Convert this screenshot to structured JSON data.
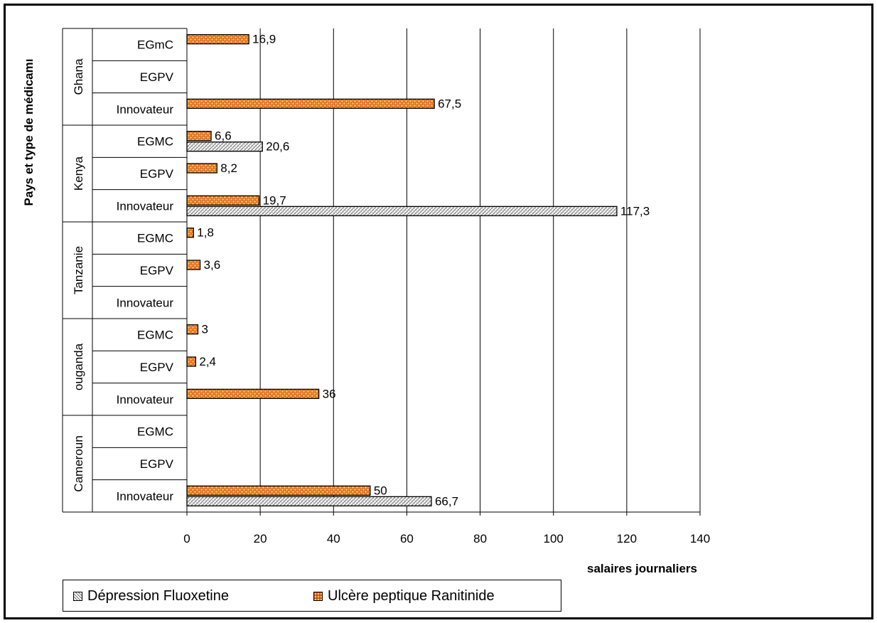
{
  "chart_data": {
    "type": "bar",
    "orientation": "horizontal",
    "title": "",
    "ylabel": "Pays et type de médicamı",
    "xlabel": "salaires journaliers",
    "xlim": [
      0,
      140
    ],
    "x_ticks": [
      "0",
      "20",
      "40",
      "60",
      "80",
      "100",
      "120",
      "140"
    ],
    "x_tick_values": [
      0,
      20,
      40,
      60,
      80,
      100,
      120,
      140
    ],
    "grid": "vertical",
    "legend_position": "bottom",
    "groups": [
      {
        "country": "Ghana",
        "categories": [
          "EGmC",
          "EGPV",
          "Innovateur"
        ]
      },
      {
        "country": "Kenya",
        "categories": [
          "EGMC",
          "EGPV",
          "Innovateur"
        ]
      },
      {
        "country": "Tanzanie",
        "categories": [
          "EGMC",
          "EGPV",
          "Innovateur"
        ]
      },
      {
        "country": "ouganda",
        "categories": [
          "EGMC",
          "EGPV",
          "Innovateur"
        ]
      },
      {
        "country": "Cameroun",
        "categories": [
          "EGMC",
          "EGPV",
          "Innovateur"
        ]
      }
    ],
    "series": [
      {
        "name": "Ulcère peptique Ranitinide",
        "color": "#f0a030",
        "pattern": "orange-dotted",
        "values": [
          16.9,
          null,
          67.5,
          6.6,
          8.2,
          19.7,
          1.8,
          3.6,
          null,
          3,
          2.4,
          36,
          null,
          null,
          50
        ],
        "labels": [
          "16,9",
          "",
          "67,5",
          "6,6",
          "8,2",
          "19,7",
          "1,8",
          "3,6",
          "",
          "3",
          "2,4",
          "36",
          "",
          "",
          "50"
        ]
      },
      {
        "name": "Dépression Fluoxetine",
        "color": "#c8c8c8",
        "pattern": "gray-hatched",
        "values": [
          null,
          null,
          null,
          20.6,
          null,
          117.3,
          null,
          null,
          null,
          null,
          null,
          null,
          null,
          null,
          66.7
        ],
        "labels": [
          "",
          "",
          "",
          "20,6",
          "",
          "117,3",
          "",
          "",
          "",
          "",
          "",
          "",
          "",
          "",
          "66,7"
        ]
      }
    ],
    "legend": [
      {
        "name": "Dépression Fluoxetine",
        "pattern": "gray-hatched"
      },
      {
        "name": "Ulcère peptique Ranitinide",
        "pattern": "orange-dotted"
      }
    ]
  }
}
